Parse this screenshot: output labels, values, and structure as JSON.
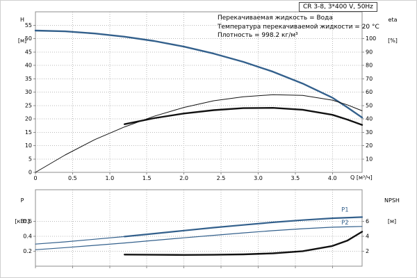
{
  "colors": {
    "curve_blue": "#33608c",
    "curve_black": "#111111",
    "grid": "#b8b8b8",
    "frame": "#8c8c8c",
    "text": "#000000"
  },
  "chart_data": [
    {
      "type": "line",
      "title": "CR 3-8, 3*400 V, 50Hz",
      "annotations": [
        "Перекачиваемая жидкость = Вода",
        "Температура перекачиваемой жидкости = 20 °C",
        "Плотность = 998.2 кг/м³"
      ],
      "xlabel": "Q [м³/ч]",
      "ylabel_left": [
        "H",
        "[м]"
      ],
      "ylabel_right": [
        "eta",
        "[%]"
      ],
      "xlim": [
        0,
        4.4
      ],
      "left_lim": [
        0,
        60
      ],
      "right_lim": [
        0,
        120
      ],
      "grid": true,
      "x_ticks": {
        "values": [
          0,
          0.5,
          1,
          1.5,
          2,
          2.5,
          3,
          3.5,
          4
        ],
        "labels": [
          "0",
          "0.5",
          "1.0",
          "1.5",
          "2.0",
          "2.5",
          "3.0",
          "3.5",
          "4.0"
        ],
        "show_labels": true
      },
      "left_ticks": {
        "values": [
          0,
          5,
          10,
          15,
          20,
          25,
          30,
          35,
          40,
          45,
          50,
          55
        ],
        "labels": [
          "0",
          "5",
          "10",
          "15",
          "20",
          "25",
          "30",
          "35",
          "40",
          "45",
          "50",
          "55"
        ]
      },
      "right_ticks": {
        "values": [
          10,
          20,
          30,
          40,
          50,
          60,
          70,
          80,
          90,
          100
        ],
        "labels": [
          "10",
          "20",
          "30",
          "40",
          "50",
          "60",
          "70",
          "80",
          "90",
          "100"
        ]
      },
      "series": [
        {
          "name": "H (head curve)",
          "axis": "left",
          "color": "#33608c",
          "width": 2.4,
          "x": [
            0,
            0.4,
            0.8,
            1.2,
            1.6,
            2,
            2.4,
            2.8,
            3.2,
            3.6,
            4,
            4.2,
            4.4
          ],
          "y": [
            53,
            52.7,
            51.9,
            50.7,
            49.1,
            47,
            44.4,
            41.3,
            37.6,
            33.2,
            27.9,
            24.3,
            20.5
          ]
        },
        {
          "name": "eta (pump efficiency)",
          "axis": "right",
          "color": "#111111",
          "width": 1,
          "x": [
            0,
            0.4,
            0.8,
            1.2,
            1.6,
            2,
            2.4,
            2.8,
            3.2,
            3.6,
            4,
            4.2,
            4.4
          ],
          "y": [
            0,
            13,
            24.5,
            34,
            42,
            48.5,
            53.5,
            56.5,
            58,
            57.5,
            54,
            50.5,
            46
          ]
        },
        {
          "name": "eta (duty range)",
          "axis": "right",
          "color": "#111111",
          "width": 2.4,
          "x": [
            1.2,
            1.6,
            2,
            2.4,
            2.8,
            3.2,
            3.6,
            4,
            4.2,
            4.4
          ],
          "y": [
            36,
            40.5,
            44,
            46.5,
            48,
            48.2,
            46.8,
            43,
            39.5,
            35.5
          ]
        }
      ],
      "text_labels": []
    },
    {
      "type": "line",
      "title": "",
      "xlabel": "",
      "ylabel_left": [
        "P",
        "[кВт]"
      ],
      "ylabel_right": [
        "NPSH",
        "[м]"
      ],
      "xlim": [
        0,
        4.4
      ],
      "left_lim": [
        0,
        1.02
      ],
      "right_lim": [
        0,
        10.2
      ],
      "grid": true,
      "x_ticks": {
        "values": [
          0,
          0.5,
          1,
          1.5,
          2,
          2.5,
          3,
          3.5,
          4
        ],
        "labels": [],
        "show_labels": false
      },
      "left_ticks": {
        "values": [
          0.2,
          0.4,
          0.6
        ],
        "labels": [
          "0.2",
          "0.4",
          "0.6"
        ]
      },
      "right_ticks": {
        "values": [
          2,
          4,
          6
        ],
        "labels": [
          "2",
          "4",
          "6"
        ]
      },
      "series": [
        {
          "name": "P1 (input power)",
          "axis": "left",
          "color": "#33608c",
          "width": 1.2,
          "x": [
            0,
            0.4,
            0.8,
            1.2,
            1.6,
            2,
            2.4,
            2.8,
            3.2,
            3.6,
            4,
            4.4
          ],
          "y": [
            0.295,
            0.325,
            0.36,
            0.395,
            0.435,
            0.475,
            0.515,
            0.55,
            0.585,
            0.615,
            0.64,
            0.655
          ]
        },
        {
          "name": "P1 (duty range)",
          "axis": "left",
          "color": "#33608c",
          "width": 2.2,
          "x": [
            1.2,
            1.6,
            2,
            2.4,
            2.8,
            3.2,
            3.6,
            4,
            4.4
          ],
          "y": [
            0.395,
            0.435,
            0.475,
            0.515,
            0.55,
            0.585,
            0.615,
            0.64,
            0.655
          ]
        },
        {
          "name": "P2 (shaft power)",
          "axis": "left",
          "color": "#33608c",
          "width": 1.2,
          "x": [
            0,
            0.4,
            0.8,
            1.2,
            1.6,
            2,
            2.4,
            2.8,
            3.2,
            3.6,
            4,
            4.4
          ],
          "y": [
            0.22,
            0.248,
            0.278,
            0.31,
            0.344,
            0.378,
            0.412,
            0.444,
            0.474,
            0.5,
            0.52,
            0.53
          ]
        },
        {
          "name": "NPSH",
          "axis": "right",
          "color": "#111111",
          "width": 2.4,
          "x": [
            1.2,
            1.6,
            2,
            2.4,
            2.8,
            3.2,
            3.6,
            4,
            4.2,
            4.4
          ],
          "y": [
            1.55,
            1.52,
            1.5,
            1.52,
            1.58,
            1.72,
            2.0,
            2.7,
            3.4,
            4.6
          ]
        }
      ],
      "text_labels": [
        {
          "text": "P1",
          "x": 4.12,
          "y": 0.73,
          "color": "#33608c"
        },
        {
          "text": "P2",
          "x": 4.12,
          "y": 0.555,
          "color": "#33608c"
        }
      ]
    }
  ]
}
